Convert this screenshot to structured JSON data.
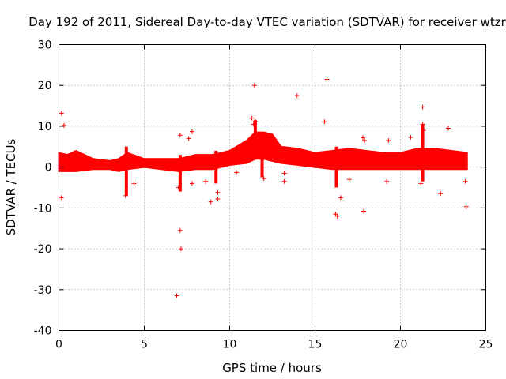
{
  "chart_data": {
    "type": "scatter",
    "title": "Day 192 of 2011, Sidereal Day-to-day VTEC variation (SDTVAR) for receiver wtzr",
    "xlabel": "GPS time / hours",
    "ylabel": "SDTVAR / TECUs",
    "xlim": [
      0,
      25
    ],
    "ylim": [
      -40,
      30
    ],
    "xticks": [
      0,
      5,
      10,
      15,
      20,
      25
    ],
    "yticks": [
      -40,
      -30,
      -20,
      -10,
      0,
      10,
      20,
      30
    ],
    "grid": true,
    "marker": "+",
    "color": "#ff0000",
    "band": {
      "x": [
        0.0,
        0.5,
        1.0,
        2.0,
        3.0,
        3.5,
        4.0,
        5.0,
        6.0,
        7.0,
        8.0,
        9.0,
        10.0,
        11.0,
        11.5,
        12.0,
        12.5,
        13.0,
        14.0,
        15.0,
        16.0,
        17.0,
        18.0,
        19.0,
        20.0,
        21.0,
        22.0,
        23.0,
        23.9
      ],
      "upper": [
        3.5,
        3.0,
        4.0,
        2.0,
        1.5,
        2.0,
        3.5,
        2.0,
        2.0,
        2.0,
        3.0,
        3.0,
        4.0,
        6.5,
        8.5,
        8.5,
        8.0,
        5.0,
        4.5,
        3.5,
        4.0,
        4.5,
        4.0,
        3.5,
        3.5,
        4.5,
        4.5,
        4.0,
        3.5
      ],
      "lower": [
        -1.0,
        -1.0,
        -1.0,
        -0.5,
        -0.5,
        -1.0,
        -0.5,
        0.0,
        -0.5,
        -1.0,
        -0.5,
        -0.5,
        0.5,
        1.0,
        2.0,
        2.0,
        1.5,
        1.0,
        0.5,
        0.0,
        -0.5,
        -0.5,
        -0.5,
        -0.5,
        -0.5,
        -0.5,
        -0.5,
        -0.5,
        -0.5
      ]
    },
    "outliers": [
      {
        "x": 0.15,
        "y": 13.2
      },
      {
        "x": 0.3,
        "y": 10.2
      },
      {
        "x": 0.15,
        "y": -7.5
      },
      {
        "x": 3.9,
        "y": -7.0
      },
      {
        "x": 4.4,
        "y": -4.0
      },
      {
        "x": 6.9,
        "y": -31.5
      },
      {
        "x": 7.1,
        "y": -15.5
      },
      {
        "x": 7.15,
        "y": -20.0
      },
      {
        "x": 7.1,
        "y": 7.8
      },
      {
        "x": 7.6,
        "y": 7.0
      },
      {
        "x": 7.8,
        "y": 8.7
      },
      {
        "x": 7.0,
        "y": -5.0
      },
      {
        "x": 7.8,
        "y": -4.0
      },
      {
        "x": 8.9,
        "y": -8.5
      },
      {
        "x": 9.3,
        "y": -6.2
      },
      {
        "x": 9.3,
        "y": -7.8
      },
      {
        "x": 8.6,
        "y": -3.5
      },
      {
        "x": 10.4,
        "y": -1.3
      },
      {
        "x": 11.45,
        "y": 20.0
      },
      {
        "x": 11.3,
        "y": 12.0
      },
      {
        "x": 11.4,
        "y": 10.5
      },
      {
        "x": 11.5,
        "y": 11.2
      },
      {
        "x": 12.0,
        "y": -2.8
      },
      {
        "x": 13.2,
        "y": -3.5
      },
      {
        "x": 13.2,
        "y": -1.5
      },
      {
        "x": 13.95,
        "y": 17.5
      },
      {
        "x": 15.55,
        "y": 11.1
      },
      {
        "x": 15.7,
        "y": 21.5
      },
      {
        "x": 16.3,
        "y": -12.0
      },
      {
        "x": 16.2,
        "y": -11.5
      },
      {
        "x": 16.5,
        "y": -7.5
      },
      {
        "x": 17.0,
        "y": -3.0
      },
      {
        "x": 17.8,
        "y": 7.2
      },
      {
        "x": 17.9,
        "y": 6.5
      },
      {
        "x": 17.85,
        "y": -10.8
      },
      {
        "x": 19.3,
        "y": 6.5
      },
      {
        "x": 19.2,
        "y": -3.5
      },
      {
        "x": 20.6,
        "y": 7.3
      },
      {
        "x": 21.3,
        "y": 14.7
      },
      {
        "x": 21.3,
        "y": 10.5
      },
      {
        "x": 21.35,
        "y": 9.0
      },
      {
        "x": 21.2,
        "y": -4.0
      },
      {
        "x": 22.35,
        "y": -6.5
      },
      {
        "x": 22.8,
        "y": 9.5
      },
      {
        "x": 23.8,
        "y": -3.5
      },
      {
        "x": 23.85,
        "y": -9.7
      }
    ],
    "spikes": [
      {
        "x": 3.95,
        "bottom": -7.0,
        "top": 5.0
      },
      {
        "x": 7.1,
        "bottom": -6.0,
        "top": 3.0
      },
      {
        "x": 9.2,
        "bottom": -4.0,
        "top": 4.0
      },
      {
        "x": 11.5,
        "bottom": 2.0,
        "top": 11.5
      },
      {
        "x": 11.9,
        "bottom": -2.5,
        "top": 6.0
      },
      {
        "x": 16.25,
        "bottom": -5.0,
        "top": 5.0
      },
      {
        "x": 21.3,
        "bottom": -3.5,
        "top": 10.5
      }
    ]
  }
}
